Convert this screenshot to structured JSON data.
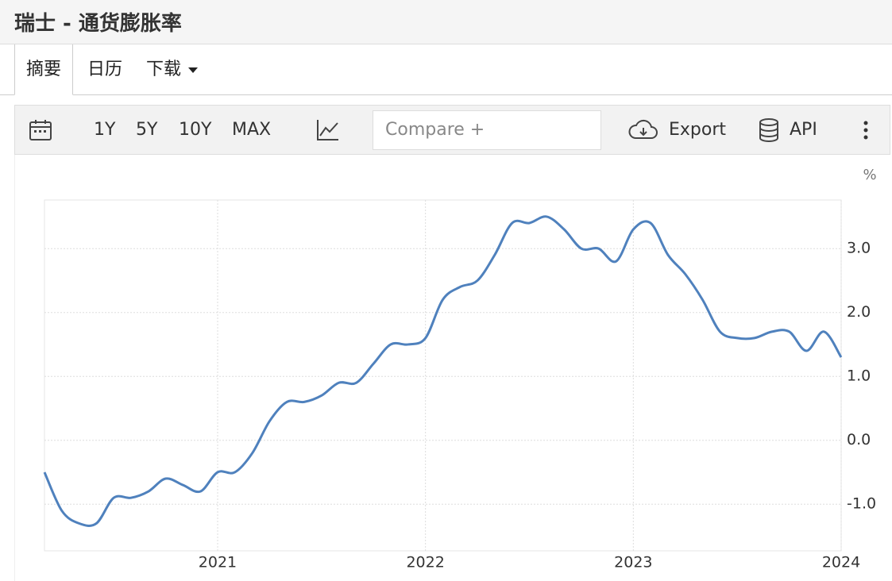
{
  "header": {
    "title": "瑞士 - 通货膨胀率"
  },
  "tabs": [
    "摘要",
    "日历",
    "下载"
  ],
  "toolbar": {
    "ranges": [
      "1Y",
      "5Y",
      "10Y",
      "MAX"
    ],
    "compare_placeholder": "Compare +",
    "export": "Export",
    "api": "API"
  },
  "chart_data": {
    "type": "line",
    "unit_label": "%",
    "x": [
      2020.167,
      2020.25,
      2020.333,
      2020.417,
      2020.5,
      2020.583,
      2020.667,
      2020.75,
      2020.833,
      2020.917,
      2021,
      2021.083,
      2021.167,
      2021.25,
      2021.333,
      2021.417,
      2021.5,
      2021.583,
      2021.667,
      2021.75,
      2021.833,
      2021.917,
      2022,
      2022.083,
      2022.167,
      2022.25,
      2022.333,
      2022.417,
      2022.5,
      2022.583,
      2022.667,
      2022.75,
      2022.833,
      2022.917,
      2023,
      2023.083,
      2023.167,
      2023.25,
      2023.333,
      2023.417,
      2023.5,
      2023.583,
      2023.667,
      2023.75,
      2023.833,
      2023.917,
      2024
    ],
    "series": [
      {
        "color": "#4f81bd",
        "values": [
          -0.5,
          -1.1,
          -1.3,
          -1.3,
          -0.9,
          -0.9,
          -0.8,
          -0.6,
          -0.7,
          -0.8,
          -0.5,
          -0.5,
          -0.2,
          0.3,
          0.6,
          0.6,
          0.7,
          0.9,
          0.9,
          1.2,
          1.5,
          1.5,
          1.6,
          2.2,
          2.4,
          2.5,
          2.9,
          3.4,
          3.4,
          3.5,
          3.3,
          3.0,
          3.0,
          2.8,
          3.3,
          3.4,
          2.9,
          2.6,
          2.2,
          1.7,
          1.6,
          1.6,
          1.7,
          1.7,
          1.4,
          1.7,
          1.3
        ]
      }
    ],
    "xlim": [
      2020.167,
      2024
    ],
    "xticks": [
      2021,
      2022,
      2023,
      2024
    ],
    "ylim": [
      -1.73,
      3.76
    ],
    "yticks": [
      {
        "value": -1,
        "label": "-1.0"
      },
      {
        "value": 0,
        "label": "0.0"
      },
      {
        "value": 1,
        "label": "1.0"
      },
      {
        "value": 2,
        "label": "2.0"
      },
      {
        "value": 3,
        "label": "3.0"
      }
    ],
    "grid": true
  }
}
